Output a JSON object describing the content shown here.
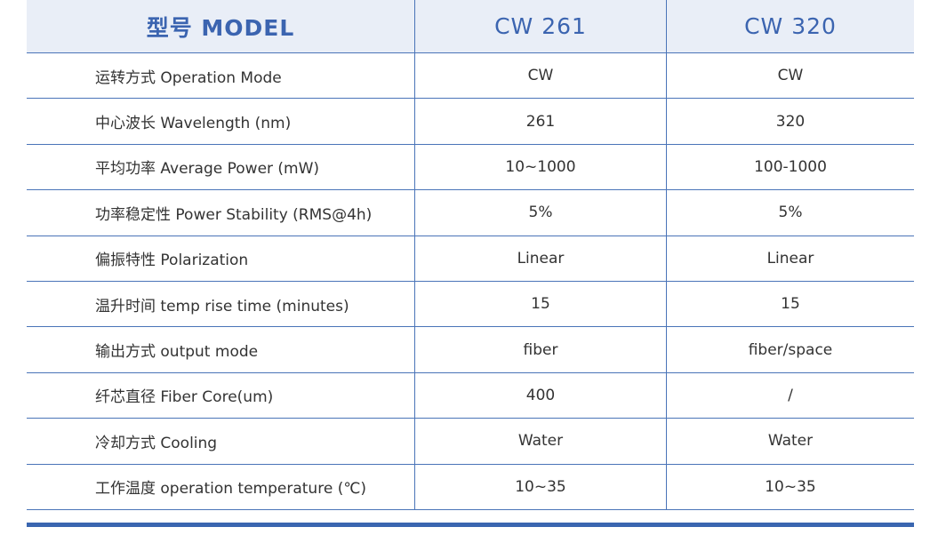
{
  "table": {
    "header": [
      "型号 MODEL",
      "CW 261",
      "CW 320"
    ],
    "rows": [
      [
        "运转方式 Operation Mode",
        "CW",
        "CW"
      ],
      [
        "中心波长 Wavelength (nm)",
        "261",
        "320"
      ],
      [
        "平均功率 Average Power (mW)",
        "10~1000",
        "100-1000"
      ],
      [
        "功率稳定性 Power Stability (RMS@4h)",
        "5%",
        "5%"
      ],
      [
        "偏振特性 Polarization",
        "Linear",
        "Linear"
      ],
      [
        "温升时间 temp rise time (minutes)",
        "15",
        "15"
      ],
      [
        "输出方式 output mode",
        "fiber",
        "fiber/space"
      ],
      [
        "纤芯直径 Fiber Core(um)",
        "400",
        "/"
      ],
      [
        "冷却方式 Cooling",
        "Water",
        "Water"
      ],
      [
        "工作温度 operation temperature (℃)",
        "10~35",
        "10~35"
      ]
    ]
  }
}
